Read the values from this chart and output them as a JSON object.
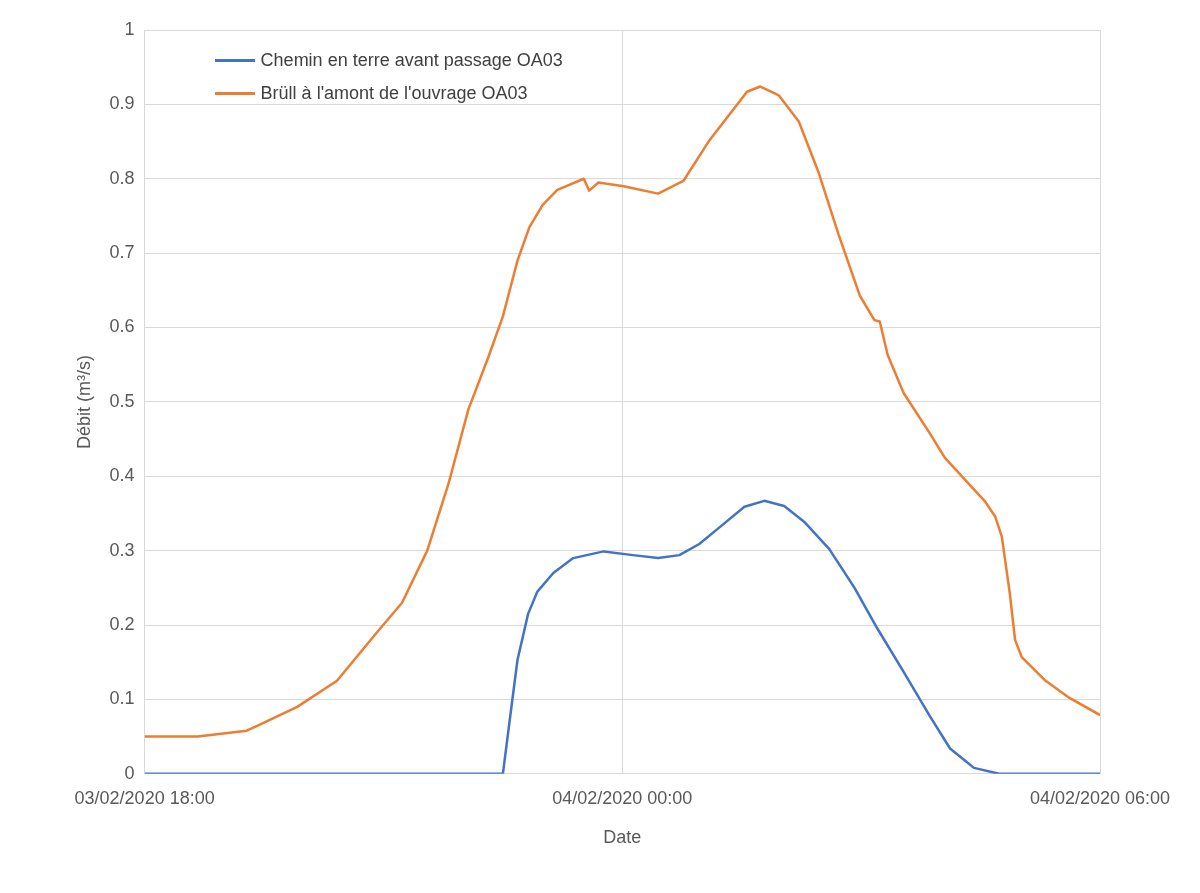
{
  "chart_data": {
    "type": "line",
    "xlabel": "Date",
    "ylabel": "Débit (m³/s)",
    "xlim": [
      "2020-02-03T18:00",
      "2020-02-04T06:00"
    ],
    "xticks": [
      {
        "value": "2020-02-03T18:00",
        "label": "03/02/2020 18:00"
      },
      {
        "value": "2020-02-04T00:00",
        "label": "04/02/2020 00:00"
      },
      {
        "value": "2020-02-04T06:00",
        "label": "04/02/2020 06:00"
      }
    ],
    "ylim": [
      0,
      1
    ],
    "yticks": [
      0,
      0.1,
      0.2,
      0.3,
      0.4,
      0.5,
      0.6,
      0.7,
      0.8,
      0.9,
      1
    ],
    "grid": true,
    "legend": "top left",
    "marker": "none",
    "line_style": "solid",
    "series": [
      {
        "name": "Chemin en terre avant passage OA03",
        "color": "#4472c4",
        "x": [
          "2020-02-03T18:00",
          "2020-02-03T22:30",
          "2020-02-03T22:35",
          "2020-02-03T22:41",
          "2020-02-03T22:49",
          "2020-02-03T22:56",
          "2020-02-03T23:08",
          "2020-02-03T23:23",
          "2020-02-03T23:46",
          "2020-02-04T00:08",
          "2020-02-04T00:27",
          "2020-02-04T00:43",
          "2020-02-04T00:58",
          "2020-02-04T01:13",
          "2020-02-04T01:32",
          "2020-02-04T01:47",
          "2020-02-04T02:02",
          "2020-02-04T02:17",
          "2020-02-04T02:36",
          "2020-02-04T02:55",
          "2020-02-04T03:12",
          "2020-02-04T03:32",
          "2020-02-04T03:52",
          "2020-02-04T04:07",
          "2020-02-04T04:25",
          "2020-02-04T04:44",
          "2020-02-04T06:00"
        ],
        "values": [
          0,
          0,
          0.07,
          0.153,
          0.215,
          0.245,
          0.27,
          0.29,
          0.299,
          0.294,
          0.29,
          0.294,
          0.309,
          0.331,
          0.359,
          0.367,
          0.36,
          0.339,
          0.302,
          0.25,
          0.196,
          0.137,
          0.077,
          0.034,
          0.008,
          0,
          0
        ]
      },
      {
        "name": "Brüll à l'amont de l'ouvrage OA03",
        "color": "#ed7d31",
        "x": [
          "2020-02-03T18:00",
          "2020-02-03T18:40",
          "2020-02-03T19:17",
          "2020-02-03T19:55",
          "2020-02-03T20:25",
          "2020-02-03T20:55",
          "2020-02-03T21:14",
          "2020-02-03T21:33",
          "2020-02-03T21:49",
          "2020-02-03T22:04",
          "2020-02-03T22:19",
          "2020-02-03T22:30",
          "2020-02-03T22:41",
          "2020-02-03T22:50",
          "2020-02-03T23:00",
          "2020-02-03T23:11",
          "2020-02-03T23:31",
          "2020-02-03T23:35",
          "2020-02-03T23:42",
          "2020-02-04T00:01",
          "2020-02-04T00:27",
          "2020-02-04T00:46",
          "2020-02-04T01:05",
          "2020-02-04T01:34",
          "2020-02-04T01:44",
          "2020-02-04T01:58",
          "2020-02-04T02:13",
          "2020-02-04T02:28",
          "2020-02-04T02:43",
          "2020-02-04T02:59",
          "2020-02-04T03:10",
          "2020-02-04T03:14",
          "2020-02-04T03:20",
          "2020-02-04T03:32",
          "2020-02-04T03:52",
          "2020-02-04T04:03",
          "2020-02-04T04:22",
          "2020-02-04T04:33",
          "2020-02-04T04:41",
          "2020-02-04T04:46",
          "2020-02-04T04:52",
          "2020-02-04T04:56",
          "2020-02-04T05:01",
          "2020-02-04T05:19",
          "2020-02-04T05:37",
          "2020-02-04T06:00"
        ],
        "values": [
          0.05,
          0.05,
          0.058,
          0.09,
          0.125,
          0.19,
          0.23,
          0.3,
          0.39,
          0.49,
          0.56,
          0.615,
          0.69,
          0.735,
          0.765,
          0.785,
          0.8,
          0.784,
          0.795,
          0.79,
          0.78,
          0.797,
          0.85,
          0.917,
          0.924,
          0.912,
          0.877,
          0.808,
          0.725,
          0.643,
          0.61,
          0.608,
          0.563,
          0.512,
          0.457,
          0.425,
          0.388,
          0.367,
          0.346,
          0.319,
          0.243,
          0.18,
          0.157,
          0.125,
          0.102,
          0.079
        ]
      }
    ]
  }
}
